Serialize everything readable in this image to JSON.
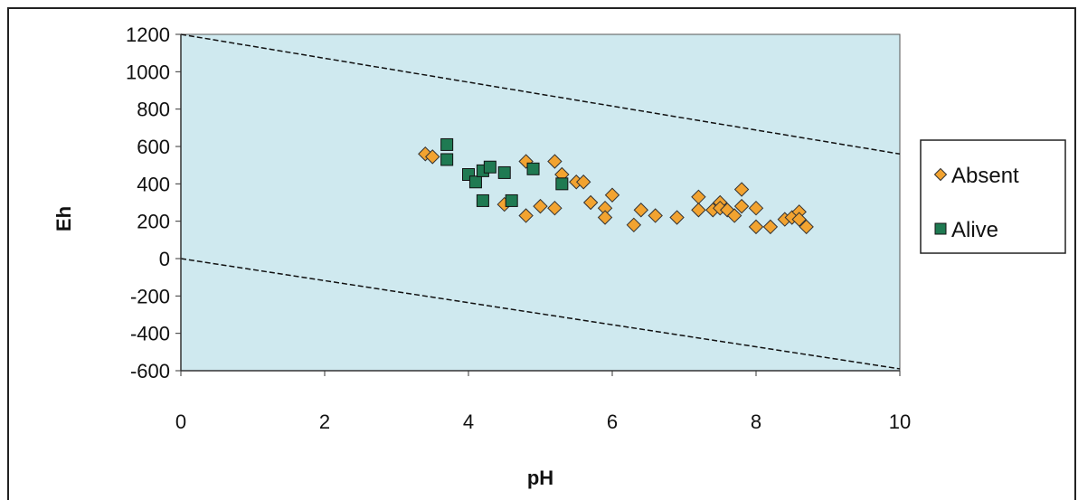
{
  "chart_data": {
    "type": "scatter",
    "title": "",
    "xlabel": "pH",
    "ylabel": "Eh",
    "xlim": [
      0,
      10
    ],
    "ylim": [
      -600,
      1200
    ],
    "x_ticks": [
      0,
      2,
      4,
      6,
      8,
      10
    ],
    "y_ticks": [
      1200,
      1000,
      800,
      600,
      400,
      200,
      0,
      -200,
      -400,
      -600
    ],
    "grid": false,
    "legend_position": "right",
    "plot_background": "#cfe9ef",
    "reference_lines": [
      {
        "x": [
          0,
          10
        ],
        "y": [
          1200,
          560
        ]
      },
      {
        "x": [
          0,
          10
        ],
        "y": [
          0,
          -590
        ]
      }
    ],
    "series": [
      {
        "name": "Absent",
        "marker": "diamond",
        "color": "#f2a330",
        "points": [
          [
            3.4,
            560
          ],
          [
            3.5,
            545
          ],
          [
            4.5,
            290
          ],
          [
            4.8,
            520
          ],
          [
            4.8,
            230
          ],
          [
            5.0,
            280
          ],
          [
            5.2,
            520
          ],
          [
            5.2,
            270
          ],
          [
            5.3,
            450
          ],
          [
            5.5,
            410
          ],
          [
            5.6,
            410
          ],
          [
            5.7,
            300
          ],
          [
            5.9,
            270
          ],
          [
            5.9,
            220
          ],
          [
            6.0,
            340
          ],
          [
            6.3,
            180
          ],
          [
            6.4,
            260
          ],
          [
            6.6,
            230
          ],
          [
            6.9,
            220
          ],
          [
            7.2,
            330
          ],
          [
            7.2,
            260
          ],
          [
            7.4,
            260
          ],
          [
            7.5,
            300
          ],
          [
            7.5,
            270
          ],
          [
            7.6,
            260
          ],
          [
            7.7,
            230
          ],
          [
            7.8,
            370
          ],
          [
            7.8,
            280
          ],
          [
            8.0,
            270
          ],
          [
            8.0,
            170
          ],
          [
            8.2,
            170
          ],
          [
            8.4,
            210
          ],
          [
            8.5,
            220
          ],
          [
            8.6,
            250
          ],
          [
            8.6,
            210
          ],
          [
            8.7,
            170
          ]
        ]
      },
      {
        "name": "Alive",
        "marker": "square",
        "color": "#1f7a52",
        "points": [
          [
            3.7,
            610
          ],
          [
            3.7,
            530
          ],
          [
            4.0,
            450
          ],
          [
            4.1,
            410
          ],
          [
            4.2,
            470
          ],
          [
            4.2,
            310
          ],
          [
            4.3,
            490
          ],
          [
            4.5,
            460
          ],
          [
            4.6,
            310
          ],
          [
            4.9,
            480
          ],
          [
            5.3,
            400
          ]
        ]
      }
    ]
  }
}
